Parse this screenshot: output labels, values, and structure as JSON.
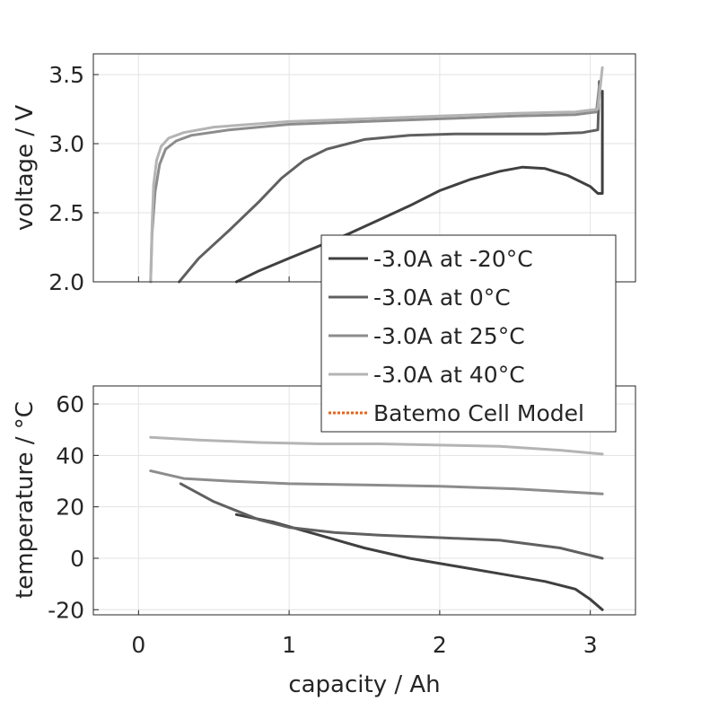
{
  "chart_data": [
    {
      "type": "line",
      "ylabel": "voltage / V",
      "xlim": [
        -0.3,
        3.3
      ],
      "ylim": [
        2.0,
        3.65
      ],
      "yticks": [
        "2.0",
        "2.5",
        "3.0",
        "3.5"
      ],
      "grid": true,
      "series": [
        {
          "name": "-3.0A at -20°C",
          "color": "#404040",
          "x": [
            0.65,
            0.8,
            1.0,
            1.2,
            1.4,
            1.6,
            1.8,
            2.0,
            2.2,
            2.4,
            2.55,
            2.7,
            2.85,
            3.0,
            3.05,
            3.08,
            3.08
          ],
          "y": [
            2.0,
            2.08,
            2.17,
            2.26,
            2.35,
            2.45,
            2.55,
            2.66,
            2.74,
            2.8,
            2.83,
            2.82,
            2.77,
            2.69,
            2.64,
            2.64,
            3.38
          ]
        },
        {
          "name": "-3.0A at 0°C",
          "color": "#606060",
          "x": [
            0.27,
            0.4,
            0.6,
            0.8,
            0.95,
            1.1,
            1.25,
            1.5,
            1.8,
            2.1,
            2.4,
            2.7,
            2.95,
            3.05,
            3.06
          ],
          "y": [
            2.0,
            2.17,
            2.37,
            2.58,
            2.75,
            2.88,
            2.96,
            3.03,
            3.06,
            3.07,
            3.07,
            3.07,
            3.08,
            3.1,
            3.45
          ]
        },
        {
          "name": "-3.0A at 25°C",
          "color": "#8c8c8c",
          "x": [
            0.08,
            0.09,
            0.11,
            0.14,
            0.18,
            0.25,
            0.35,
            0.6,
            1.0,
            1.5,
            2.0,
            2.5,
            2.9,
            3.04,
            3.06
          ],
          "y": [
            2.0,
            2.35,
            2.65,
            2.85,
            2.96,
            3.02,
            3.06,
            3.1,
            3.14,
            3.16,
            3.18,
            3.2,
            3.21,
            3.23,
            3.42
          ]
        },
        {
          "name": "-3.0A at 40°C",
          "color": "#b4b4b4",
          "x": [
            0.08,
            0.09,
            0.1,
            0.12,
            0.15,
            0.2,
            0.3,
            0.5,
            1.0,
            1.5,
            2.0,
            2.5,
            2.9,
            3.05,
            3.08
          ],
          "y": [
            2.0,
            2.4,
            2.7,
            2.88,
            2.98,
            3.04,
            3.08,
            3.12,
            3.16,
            3.18,
            3.2,
            3.22,
            3.23,
            3.25,
            3.55
          ]
        }
      ],
      "legend": {
        "placement": "lower-right",
        "entries": [
          {
            "label": "-3.0A at -20°C",
            "color": "#404040",
            "style": "solid"
          },
          {
            "label": "-3.0A at 0°C",
            "color": "#606060",
            "style": "solid"
          },
          {
            "label": "-3.0A at 25°C",
            "color": "#8c8c8c",
            "style": "solid"
          },
          {
            "label": "-3.0A at 40°C",
            "color": "#b4b4b4",
            "style": "solid"
          },
          {
            "label": "Batemo Cell Model",
            "color": "#e8641c",
            "style": "dotted"
          }
        ]
      }
    },
    {
      "type": "line",
      "xlabel": "capacity / Ah",
      "ylabel": "temperature / °C",
      "xlim": [
        -0.3,
        3.3
      ],
      "ylim": [
        -22,
        67
      ],
      "xticks": [
        "0",
        "1",
        "2",
        "3"
      ],
      "yticks": [
        "-20",
        "0",
        "20",
        "40",
        "60"
      ],
      "grid": true,
      "series": [
        {
          "name": "-3.0A at -20°C",
          "color": "#404040",
          "x": [
            0.65,
            0.9,
            1.2,
            1.5,
            1.8,
            2.1,
            2.4,
            2.7,
            2.9,
            3.0,
            3.08
          ],
          "y": [
            17,
            14,
            9,
            4,
            0,
            -3,
            -6,
            -9,
            -12,
            -16,
            -20
          ]
        },
        {
          "name": "-3.0A at 0°C",
          "color": "#606060",
          "x": [
            0.28,
            0.5,
            0.8,
            1.0,
            1.3,
            1.6,
            2.0,
            2.4,
            2.8,
            3.08
          ],
          "y": [
            29,
            22,
            15,
            12,
            10,
            9,
            8,
            7,
            4,
            0
          ]
        },
        {
          "name": "-3.0A at 25°C",
          "color": "#8c8c8c",
          "x": [
            0.08,
            0.3,
            0.6,
            1.0,
            1.5,
            2.0,
            2.5,
            2.8,
            3.08
          ],
          "y": [
            34,
            31,
            30,
            29,
            28.5,
            28,
            27,
            26,
            25
          ]
        },
        {
          "name": "-3.0A at 40°C",
          "color": "#b4b4b4",
          "x": [
            0.08,
            0.4,
            0.8,
            1.2,
            1.6,
            2.0,
            2.4,
            2.8,
            3.08
          ],
          "y": [
            47,
            46,
            45,
            44.5,
            44.5,
            44,
            43.5,
            42,
            40.5
          ]
        }
      ]
    }
  ]
}
